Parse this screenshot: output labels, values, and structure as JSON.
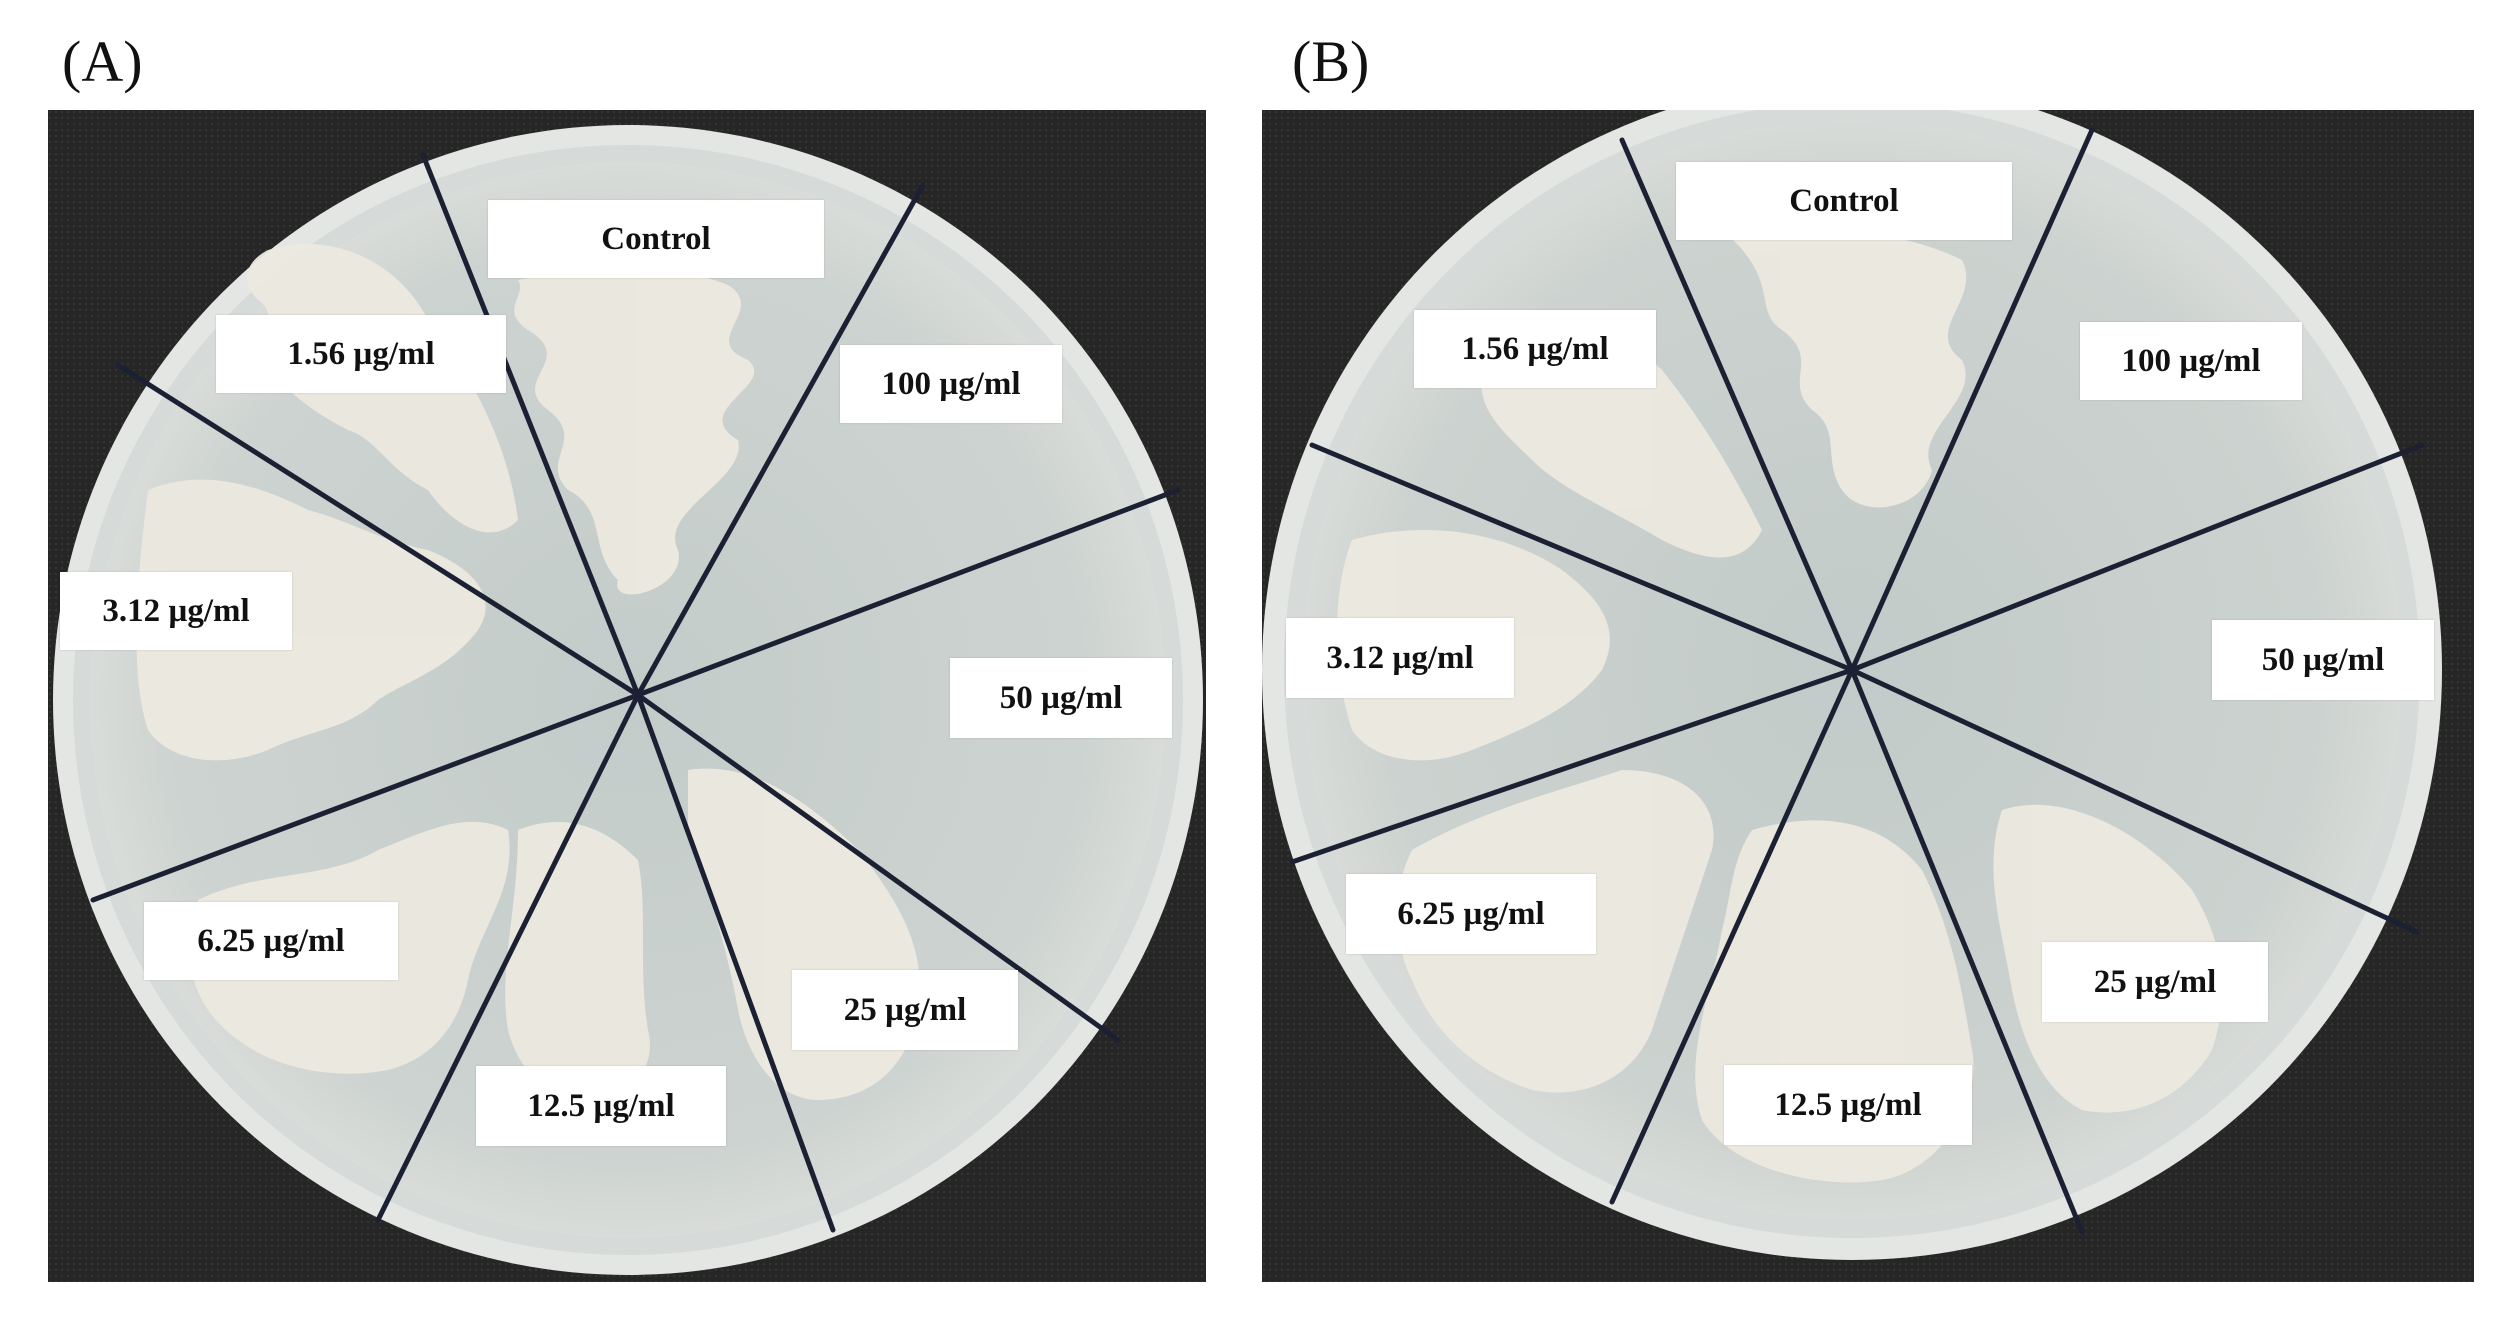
{
  "panels": [
    {
      "label": "(A)",
      "labels": {
        "control": "Control",
        "c100": "100 µg/ml",
        "c50": "50 µg/ml",
        "c25": "25 µg/ml",
        "c12": "12.5 µg/ml",
        "c6": "6.25 µg/ml",
        "c3": "3.12 µg/ml",
        "c1": "1.56 µg/ml"
      }
    },
    {
      "label": "(B)",
      "labels": {
        "control": "Control",
        "c100": "100 µg/ml",
        "c50": "50 µg/ml",
        "c25": "25 µg/ml",
        "c12": "12.5 µg/ml",
        "c6": "6.25 µg/ml",
        "c3": "3.12 µg/ml",
        "c1": "1.56 µg/ml"
      }
    }
  ],
  "colors": {
    "background_cloth": "#2a2a2a",
    "agar": "#c9cfcc",
    "dish_rim": "#e6e8e6",
    "bacterial_growth": "#ece9df",
    "divider_line": "#1c2033",
    "label_box": "#ffffff"
  }
}
